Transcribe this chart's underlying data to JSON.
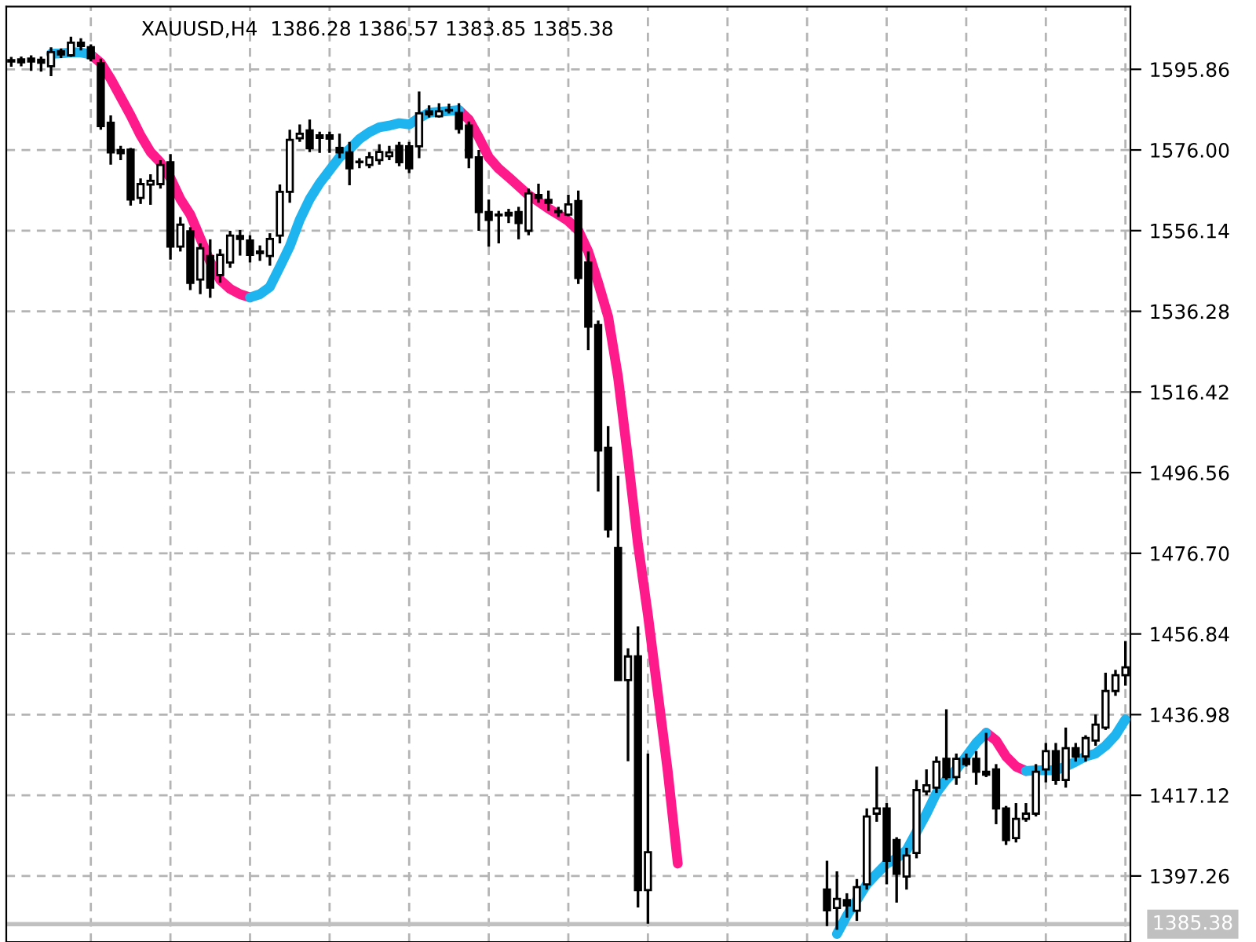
{
  "chart_data": {
    "type": "candlestick",
    "title": "XAUUSD,H4  1386.28 1386.57 1383.85 1385.38",
    "categories": [
      null,
      null,
      null,
      null,
      null,
      null,
      null,
      null,
      null,
      null,
      null,
      null,
      null,
      null,
      null,
      null,
      null,
      null,
      null,
      null,
      null,
      null,
      null,
      null,
      null,
      null,
      null,
      null,
      null,
      null,
      null,
      null,
      null,
      null,
      null,
      null,
      null,
      null,
      null,
      null,
      null,
      null,
      null,
      null,
      null,
      null,
      null,
      null,
      null,
      null,
      null,
      null,
      null,
      null,
      null,
      null,
      null,
      null,
      null,
      null,
      null,
      null,
      null,
      null,
      null,
      null,
      null,
      null,
      null,
      null,
      null,
      null,
      null,
      null,
      null,
      null,
      null,
      null,
      null,
      null,
      null,
      null,
      null,
      null,
      null,
      null,
      null,
      null,
      null,
      null,
      null,
      null,
      null,
      null,
      null,
      null,
      null,
      null,
      null,
      null,
      null,
      null,
      null,
      null,
      null,
      null,
      null,
      null,
      null,
      null,
      null,
      null,
      null
    ],
    "ohlc": [
      [
        1597.8,
        1598.9,
        1596.5,
        1598.1
      ],
      [
        1598.3,
        1599,
        1596.6,
        1597.6
      ],
      [
        1598.5,
        1599.3,
        1595.5,
        1597.8
      ],
      [
        1598.2,
        1599,
        1595.3,
        1597.5
      ],
      [
        1596.6,
        1601.3,
        1594.2,
        1600.1
      ],
      [
        1600.3,
        1601,
        1598.6,
        1599.5
      ],
      [
        1599.3,
        1603.9,
        1598.9,
        1602.4
      ],
      [
        1602.4,
        1603.5,
        1600.5,
        1601.6
      ],
      [
        1601.3,
        1602,
        1597.8,
        1598.6
      ],
      [
        1597.4,
        1598.5,
        1581,
        1581.9
      ],
      [
        1582.7,
        1584.5,
        1572.4,
        1575.4
      ],
      [
        1576,
        1577,
        1573.5,
        1575.2
      ],
      [
        1576.1,
        1576.5,
        1562.3,
        1563.8
      ],
      [
        1564.2,
        1569,
        1562.7,
        1567.6
      ],
      [
        1567.5,
        1570,
        1562.5,
        1568.4
      ],
      [
        1567.6,
        1573.5,
        1566.5,
        1572.3
      ],
      [
        1573,
        1575,
        1549,
        1552.2
      ],
      [
        1552.2,
        1559.5,
        1551,
        1557.6
      ],
      [
        1556,
        1557,
        1541.5,
        1543.3
      ],
      [
        1544.1,
        1553,
        1540.5,
        1551.8
      ],
      [
        1549.9,
        1554,
        1539.6,
        1542.1
      ],
      [
        1545.2,
        1551.6,
        1543.3,
        1550.2
      ],
      [
        1548.3,
        1556.1,
        1547,
        1554.9
      ],
      [
        1554.8,
        1556.3,
        1550,
        1554.1
      ],
      [
        1553.7,
        1555,
        1548.3,
        1550.2
      ],
      [
        1551,
        1552.5,
        1548.7,
        1550.6
      ],
      [
        1549.9,
        1555.5,
        1547.5,
        1554.1
      ],
      [
        1554.9,
        1567.5,
        1553,
        1565.7
      ],
      [
        1565.7,
        1581,
        1563,
        1578.5
      ],
      [
        1578.9,
        1582.3,
        1578,
        1580
      ],
      [
        1580.8,
        1583.5,
        1575.5,
        1576.4
      ],
      [
        1579.6,
        1580.5,
        1575.3,
        1579
      ],
      [
        1579.6,
        1580.5,
        1575.3,
        1578.8
      ],
      [
        1576.5,
        1580,
        1574,
        1575.4
      ],
      [
        1575.4,
        1578,
        1567.3,
        1571.5
      ],
      [
        1573.1,
        1574,
        1571.5,
        1573
      ],
      [
        1572.3,
        1575.5,
        1571.5,
        1574.2
      ],
      [
        1573.5,
        1577.4,
        1572.4,
        1575.5
      ],
      [
        1574.5,
        1577,
        1573.5,
        1575.4
      ],
      [
        1577,
        1578,
        1572,
        1573
      ],
      [
        1576.9,
        1578,
        1570.3,
        1571.5
      ],
      [
        1576.9,
        1590.4,
        1574,
        1585
      ],
      [
        1585.5,
        1587,
        1584,
        1584.8
      ],
      [
        1584.3,
        1587.5,
        1584,
        1585.5
      ],
      [
        1585.7,
        1587.4,
        1585,
        1585.8
      ],
      [
        1585.1,
        1587.5,
        1580,
        1581.2
      ],
      [
        1582,
        1583,
        1571.5,
        1574.2
      ],
      [
        1574.2,
        1576,
        1556.1,
        1560.7
      ],
      [
        1560.7,
        1563.8,
        1552.2,
        1558.8
      ],
      [
        1560.1,
        1561,
        1553,
        1559.9
      ],
      [
        1560.5,
        1561.5,
        1558,
        1559.9
      ],
      [
        1560.7,
        1562,
        1554,
        1558
      ],
      [
        1556.1,
        1566.5,
        1555,
        1565.3
      ],
      [
        1564.9,
        1567.7,
        1563,
        1564.2
      ],
      [
        1563.7,
        1566,
        1561,
        1563
      ],
      [
        1561,
        1562,
        1559.5,
        1560.7
      ],
      [
        1560.1,
        1565,
        1559.7,
        1562.6
      ],
      [
        1563.4,
        1566,
        1543,
        1544.5
      ],
      [
        1548.3,
        1551,
        1526.7,
        1532.5
      ],
      [
        1532.9,
        1534,
        1491.9,
        1502
      ],
      [
        1502.7,
        1508,
        1480.6,
        1482.6
      ],
      [
        1478,
        1495.8,
        1445.5,
        1445.5
      ],
      [
        1445.5,
        1453.3,
        1425.5,
        1451.3
      ],
      [
        1451.3,
        1458.7,
        1389.5,
        1393.8
      ],
      [
        1393.8,
        1427.4,
        1385.5,
        1403.1
      ],
      null,
      null,
      null,
      null,
      null,
      null,
      null,
      null,
      null,
      null,
      null,
      null,
      null,
      null,
      null,
      null,
      null,
      [
        1393.9,
        1401,
        1384.9,
        1388.8
      ],
      [
        1389.4,
        1398.4,
        1384,
        1391.6
      ],
      [
        1391.3,
        1393,
        1387,
        1390
      ],
      [
        1388.7,
        1396.5,
        1386.2,
        1394.5
      ],
      [
        1395.2,
        1413.9,
        1393.9,
        1411.9
      ],
      [
        1412.6,
        1424.2,
        1410.6,
        1413.9
      ],
      [
        1413.9,
        1415.2,
        1395.2,
        1401
      ],
      [
        1406.1,
        1406.8,
        1390.7,
        1397.8
      ],
      [
        1397.1,
        1404.2,
        1393.9,
        1402.3
      ],
      [
        1402.9,
        1420.9,
        1401.6,
        1418.4
      ],
      [
        1418.1,
        1423.5,
        1417.1,
        1419.6
      ],
      [
        1419,
        1426.7,
        1417.7,
        1425.4
      ],
      [
        1426.1,
        1438.3,
        1420.9,
        1421.6
      ],
      [
        1421.6,
        1427.4,
        1419.7,
        1426.1
      ],
      [
        1426.1,
        1427.4,
        1424.2,
        1424.8
      ],
      [
        1426.1,
        1428,
        1419.7,
        1422.9
      ],
      [
        1422.9,
        1432.5,
        1421.6,
        1422.2
      ],
      [
        1423.5,
        1424.8,
        1410,
        1413.9
      ],
      [
        1413.9,
        1414.5,
        1404.9,
        1406.1
      ],
      [
        1406.6,
        1415.2,
        1405.5,
        1411.3
      ],
      [
        1411.3,
        1415.2,
        1410.6,
        1412.6
      ],
      [
        1412.6,
        1424.8,
        1411.9,
        1422.9
      ],
      [
        1423.5,
        1430,
        1420.3,
        1428
      ],
      [
        1428,
        1430,
        1419.7,
        1420.9
      ],
      [
        1420.9,
        1433.8,
        1419,
        1428.7
      ],
      [
        1428.7,
        1430,
        1425.4,
        1426.7
      ],
      [
        1426.7,
        1431.9,
        1425.4,
        1431.2
      ],
      [
        1430.6,
        1437,
        1429.3,
        1434.5
      ],
      [
        1433.8,
        1447.3,
        1433.2,
        1442.8
      ],
      [
        1442.8,
        1448,
        1441.6,
        1446.7
      ],
      [
        1446.7,
        1455.1,
        1444.1,
        1448.6
      ]
    ],
    "series": [
      {
        "type": "line",
        "color": "#ff1a8c",
        "values": [
          null,
          null,
          null,
          null,
          null,
          null,
          null,
          null,
          1599.5,
          1597.4,
          1593.5,
          1589,
          1584.5,
          1579.6,
          1575.5,
          1572.9,
          1569.1,
          1563.9,
          1560.1,
          1554.3,
          1548.5,
          1544,
          1541.8,
          1540.5,
          1539.7,
          null,
          null,
          null,
          null,
          null,
          null,
          null,
          null,
          null,
          null,
          null,
          null,
          null,
          null,
          null,
          null,
          null,
          null,
          null,
          null,
          1585.8,
          1583.5,
          1579.1,
          1574.2,
          1571.4,
          1569.3,
          1567.1,
          1564.9,
          1563.3,
          1561.6,
          1560.1,
          1558.5,
          1556.2,
          1551,
          1543.3,
          1535,
          1520,
          1500,
          1478.9,
          1461.5,
          1442.2,
          1422.9,
          1400.3,
          null,
          null,
          null,
          null,
          null,
          null,
          null,
          null,
          null,
          null,
          null,
          null,
          null,
          null,
          null,
          null,
          null,
          null,
          null,
          null,
          null,
          null,
          null,
          null,
          null,
          null,
          null,
          null,
          null,
          null,
          1432.5,
          1430.6,
          1426.7,
          1424.2,
          1423.1,
          null,
          null,
          null,
          null,
          null,
          null,
          null,
          null,
          null,
          null
        ]
      },
      {
        "type": "line",
        "color": "#1eb4f0",
        "values": [
          null,
          null,
          null,
          null,
          1599.7,
          1599.8,
          1600,
          1600,
          1599.5,
          null,
          null,
          null,
          null,
          null,
          null,
          null,
          null,
          null,
          null,
          null,
          null,
          null,
          null,
          null,
          1539.7,
          1540.5,
          1542.3,
          1547.2,
          1552.3,
          1558.8,
          1563.9,
          1567.8,
          1571,
          1574.2,
          1576.2,
          1578.7,
          1580.4,
          1581.6,
          1582,
          1582.6,
          1582.3,
          1583.9,
          1585.2,
          1585.4,
          1585.6,
          1585.8,
          null,
          null,
          null,
          null,
          null,
          null,
          null,
          null,
          null,
          null,
          null,
          null,
          null,
          null,
          null,
          null,
          null,
          null,
          null,
          null,
          null,
          null,
          null,
          null,
          null,
          null,
          null,
          null,
          null,
          null,
          null,
          null,
          null,
          null,
          null,
          null,
          null,
          1383,
          1387.5,
          1391.3,
          1395.2,
          1397.8,
          1400.3,
          1401.6,
          1403.6,
          1408.1,
          1412.6,
          1417.7,
          1421,
          1423.5,
          1426.7,
          1430,
          1432.5,
          null,
          null,
          null,
          1423.1,
          1423.3,
          1423.3,
          1423.3,
          1424.2,
          1425.4,
          1426.7,
          1427.4,
          1429.3,
          1431.9,
          1435.8
        ]
      }
    ],
    "ylim": [
      1381.0,
      1611.3
    ],
    "yticks": [
      1397.26,
      1417.12,
      1436.98,
      1456.84,
      {
        "value": 1476.7,
        "label": "1476.70"
      },
      1496.56,
      1516.42,
      1536.28,
      1556.14,
      {
        "value": 1576,
        "label": "1576.00"
      },
      1595.86
    ],
    "ref_lines": [
      {
        "axis": "y",
        "value": 1385.38,
        "label": "1385.38",
        "color": "#c0c0c0"
      }
    ],
    "grid": true,
    "tick_labels": "y"
  }
}
